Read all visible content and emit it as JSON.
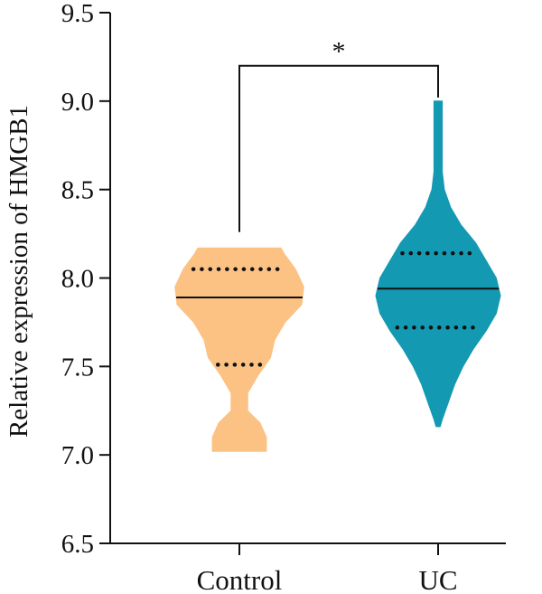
{
  "chart_data": {
    "type": "violin",
    "title": "",
    "ylabel": "Relative expression of HMGB1",
    "xlabel": "",
    "ylim": [
      6.5,
      9.5
    ],
    "yticks": [
      6.5,
      7.0,
      7.5,
      8.0,
      8.5,
      9.0,
      9.5
    ],
    "ytick_labels": [
      "6.5",
      "7.0",
      "7.5",
      "8.0",
      "8.5",
      "9.0",
      "9.5"
    ],
    "categories": [
      "Control",
      "UC"
    ],
    "grid": false,
    "series": [
      {
        "category": "Control",
        "color": "#fbc283",
        "median": 7.89,
        "q1": 7.51,
        "q3": 8.05,
        "density": [
          [
            7.02,
            0.13
          ],
          [
            7.1,
            0.13
          ],
          [
            7.18,
            0.1
          ],
          [
            7.25,
            0.04
          ],
          [
            7.35,
            0.04
          ],
          [
            7.45,
            0.09
          ],
          [
            7.55,
            0.15
          ],
          [
            7.65,
            0.17
          ],
          [
            7.75,
            0.22
          ],
          [
            7.85,
            0.3
          ],
          [
            7.95,
            0.31
          ],
          [
            8.05,
            0.27
          ],
          [
            8.13,
            0.22
          ],
          [
            8.17,
            0.2
          ]
        ]
      },
      {
        "category": "UC",
        "color": "#1499b2",
        "median": 7.94,
        "q1": 7.72,
        "q3": 8.14,
        "density": [
          [
            7.16,
            0.01
          ],
          [
            7.2,
            0.02
          ],
          [
            7.3,
            0.05
          ],
          [
            7.4,
            0.08
          ],
          [
            7.5,
            0.12
          ],
          [
            7.6,
            0.17
          ],
          [
            7.7,
            0.23
          ],
          [
            7.8,
            0.28
          ],
          [
            7.9,
            0.3
          ],
          [
            8.0,
            0.28
          ],
          [
            8.1,
            0.23
          ],
          [
            8.2,
            0.18
          ],
          [
            8.3,
            0.11
          ],
          [
            8.4,
            0.06
          ],
          [
            8.5,
            0.03
          ],
          [
            8.6,
            0.02
          ],
          [
            8.7,
            0.02
          ],
          [
            8.8,
            0.02
          ],
          [
            8.9,
            0.02
          ],
          [
            9.0,
            0.02
          ]
        ]
      }
    ],
    "significance": {
      "label": "*",
      "from": "Control",
      "to": "UC",
      "y": 9.2
    }
  }
}
